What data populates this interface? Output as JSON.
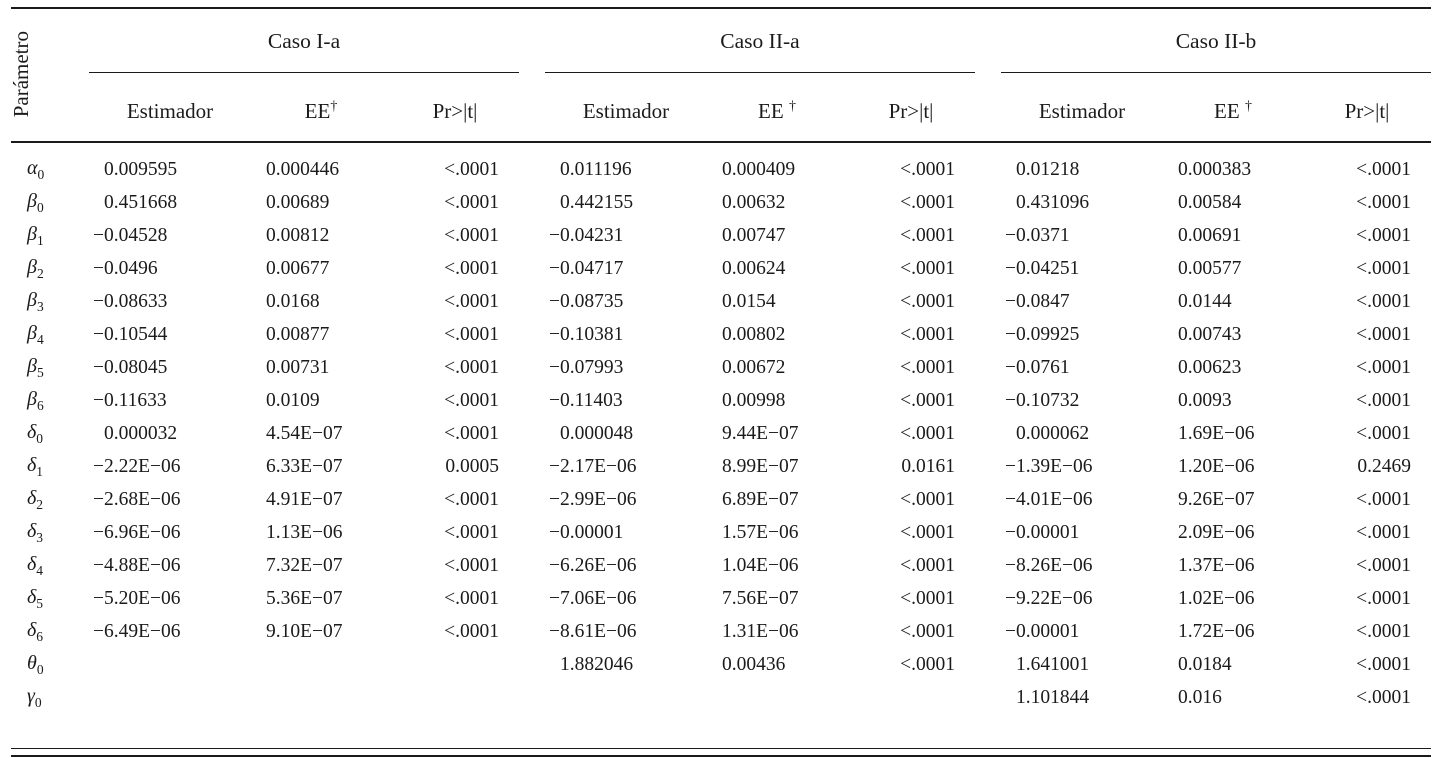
{
  "param_header": "Parámetro",
  "sections": [
    {
      "key": "caso-i-a",
      "title": "Caso I-a",
      "col_estimador": "Estimador",
      "col_ee": "EE",
      "col_ee_sup": "†",
      "col_pr": "Pr>|t|"
    },
    {
      "key": "caso-ii-a",
      "title": "Caso II-a",
      "col_estimador": "Estimador",
      "col_ee": "EE",
      "col_ee_sup": "†",
      "col_pr": "Pr>|t|"
    },
    {
      "key": "caso-ii-b",
      "title": "Caso II-b",
      "col_estimador": "Estimador",
      "col_ee": "EE",
      "col_ee_sup": "†",
      "col_pr": "Pr>|t|"
    }
  ],
  "rows": [
    {
      "sym": "α",
      "sub": "0",
      "values": [
        "0.009595",
        "0.000446",
        "<.0001",
        "0.011196",
        "0.000409",
        "<.0001",
        "0.01218",
        "0.000383",
        "<.0001"
      ]
    },
    {
      "sym": "β",
      "sub": "0",
      "values": [
        "0.451668",
        "0.00689",
        "<.0001",
        "0.442155",
        "0.00632",
        "<.0001",
        "0.431096",
        "0.00584",
        "<.0001"
      ]
    },
    {
      "sym": "β",
      "sub": "1",
      "values": [
        "−0.04528",
        "0.00812",
        "<.0001",
        "−0.04231",
        "0.00747",
        "<.0001",
        "−0.0371",
        "0.00691",
        "<.0001"
      ]
    },
    {
      "sym": "β",
      "sub": "2",
      "values": [
        "−0.0496",
        "0.00677",
        "<.0001",
        "−0.04717",
        "0.00624",
        "<.0001",
        "−0.04251",
        "0.00577",
        "<.0001"
      ]
    },
    {
      "sym": "β",
      "sub": "3",
      "values": [
        "−0.08633",
        "0.0168",
        "<.0001",
        "−0.08735",
        "0.0154",
        "<.0001",
        "−0.0847",
        "0.0144",
        "<.0001"
      ]
    },
    {
      "sym": "β",
      "sub": "4",
      "values": [
        "−0.10544",
        "0.00877",
        "<.0001",
        "−0.10381",
        "0.00802",
        "<.0001",
        "−0.09925",
        "0.00743",
        "<.0001"
      ]
    },
    {
      "sym": "β",
      "sub": "5",
      "values": [
        "−0.08045",
        "0.00731",
        "<.0001",
        "−0.07993",
        "0.00672",
        "<.0001",
        "−0.0761",
        "0.00623",
        "<.0001"
      ]
    },
    {
      "sym": "β",
      "sub": "6",
      "values": [
        "−0.11633",
        "0.0109",
        "<.0001",
        "−0.11403",
        "0.00998",
        "<.0001",
        "−0.10732",
        "0.0093",
        "<.0001"
      ]
    },
    {
      "sym": "δ",
      "sub": "0",
      "values": [
        "0.000032",
        "4.54E−07",
        "<.0001",
        "0.000048",
        "9.44E−07",
        "<.0001",
        "0.000062",
        "1.69E−06",
        "<.0001"
      ]
    },
    {
      "sym": "δ",
      "sub": "1",
      "values": [
        "−2.22E−06",
        "6.33E−07",
        "0.0005",
        "−2.17E−06",
        "8.99E−07",
        "0.0161",
        "−1.39E−06",
        "1.20E−06",
        "0.2469"
      ]
    },
    {
      "sym": "δ",
      "sub": "2",
      "values": [
        "−2.68E−06",
        "4.91E−07",
        "<.0001",
        "−2.99E−06",
        "6.89E−07",
        "<.0001",
        "−4.01E−06",
        "9.26E−07",
        "<.0001"
      ]
    },
    {
      "sym": "δ",
      "sub": "3",
      "values": [
        "−6.96E−06",
        "1.13E−06",
        "<.0001",
        "−0.00001",
        "1.57E−06",
        "<.0001",
        "−0.00001",
        "2.09E−06",
        "<.0001"
      ]
    },
    {
      "sym": "δ",
      "sub": "4",
      "values": [
        "−4.88E−06",
        "7.32E−07",
        "<.0001",
        "−6.26E−06",
        "1.04E−06",
        "<.0001",
        "−8.26E−06",
        "1.37E−06",
        "<.0001"
      ]
    },
    {
      "sym": "δ",
      "sub": "5",
      "values": [
        "−5.20E−06",
        "5.36E−07",
        "<.0001",
        "−7.06E−06",
        "7.56E−07",
        "<.0001",
        "−9.22E−06",
        "1.02E−06",
        "<.0001"
      ]
    },
    {
      "sym": "δ",
      "sub": "6",
      "values": [
        "−6.49E−06",
        "9.10E−07",
        "<.0001",
        "−8.61E−06",
        "1.31E−06",
        "<.0001",
        "−0.00001",
        "1.72E−06",
        "<.0001"
      ]
    },
    {
      "sym": "θ",
      "sub": "0",
      "values": [
        "",
        "",
        "",
        "1.882046",
        "0.00436",
        "<.0001",
        "1.641001",
        "0.0184",
        "<.0001"
      ]
    },
    {
      "sym": "γ",
      "sub": "0",
      "values": [
        "",
        "",
        "",
        "",
        "",
        "",
        "1.101844",
        "0.016",
        "<.0001"
      ]
    }
  ]
}
